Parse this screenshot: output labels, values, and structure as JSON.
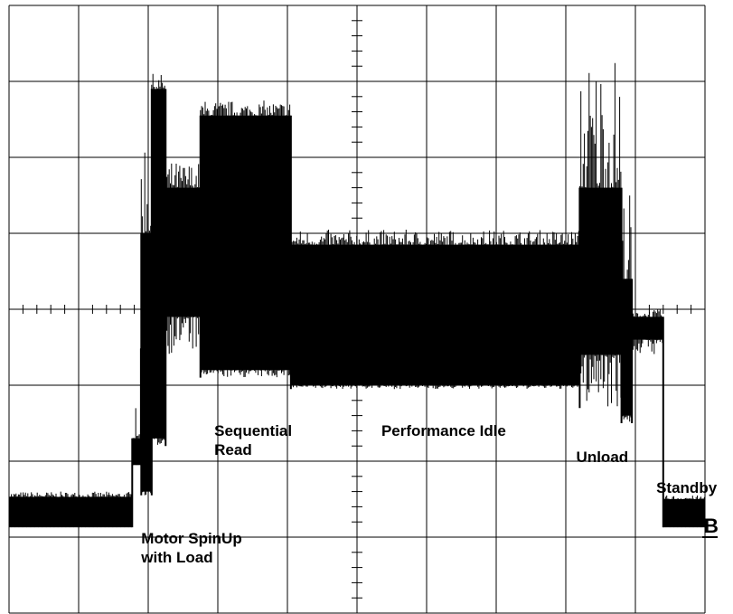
{
  "chart_data": {
    "type": "line",
    "title": "",
    "xlabel": "",
    "ylabel": "",
    "grid": true,
    "grid_divisions": {
      "x": 10,
      "y": 8
    },
    "xlim": [
      0,
      10
    ],
    "ylim": [
      0,
      8
    ],
    "trace_color": "#000000",
    "grid_color": "#000000",
    "channel_marker": "B",
    "series": [
      {
        "segments": [
          {
            "x0": 0.0,
            "x1": 1.77,
            "lo": 1.13,
            "hi": 1.53,
            "spike_hi": 1.6
          },
          {
            "x0": 1.77,
            "x1": 1.9,
            "lo": 1.95,
            "hi": 2.3,
            "spike_hi": 3.5
          },
          {
            "x0": 1.9,
            "x1": 2.05,
            "lo": 1.6,
            "hi": 5.0,
            "spike_hi": 6.7,
            "spike_lo": 1.55
          },
          {
            "x0": 2.05,
            "x1": 2.25,
            "lo": 2.3,
            "hi": 6.9,
            "spike_hi": 7.1,
            "spike_lo": 2.2
          },
          {
            "x0": 2.25,
            "x1": 2.75,
            "lo": 3.9,
            "hi": 5.6,
            "spike_hi": 5.95,
            "spike_lo": 3.4
          },
          {
            "x0": 2.75,
            "x1": 4.05,
            "lo": 3.2,
            "hi": 6.55,
            "spike_hi": 6.75,
            "spike_lo": 3.1
          },
          {
            "x0": 4.05,
            "x1": 8.2,
            "lo": 3.0,
            "hi": 4.85,
            "spike_hi": 5.05,
            "spike_lo": 2.95
          },
          {
            "x0": 8.2,
            "x1": 8.8,
            "lo": 3.4,
            "hi": 5.6,
            "spike_hi": 7.45,
            "spike_lo": 2.7
          },
          {
            "x0": 8.8,
            "x1": 8.95,
            "lo": 2.6,
            "hi": 4.4,
            "spike_hi": 5.6,
            "spike_lo": 2.5
          },
          {
            "x0": 8.95,
            "x1": 9.4,
            "lo": 3.6,
            "hi": 3.9,
            "spike_hi": 4.0,
            "spike_lo": 3.4
          },
          {
            "x0": 9.4,
            "x1": 10.0,
            "lo": 1.13,
            "hi": 1.5,
            "spike_hi": 1.55
          }
        ]
      }
    ],
    "annotations": [
      {
        "lines": [
          "Motor SpinUp",
          "with Load"
        ],
        "x": 1.9,
        "y": 1.13
      },
      {
        "lines": [
          "Sequential",
          "Read"
        ],
        "x": 2.95,
        "y": 2.55
      },
      {
        "lines": [
          "Performance Idle"
        ],
        "x": 5.35,
        "y": 2.55
      },
      {
        "lines": [
          "Unload"
        ],
        "x": 8.15,
        "y": 2.2
      },
      {
        "lines": [
          "Standby"
        ],
        "x": 9.3,
        "y": 1.8
      }
    ]
  }
}
